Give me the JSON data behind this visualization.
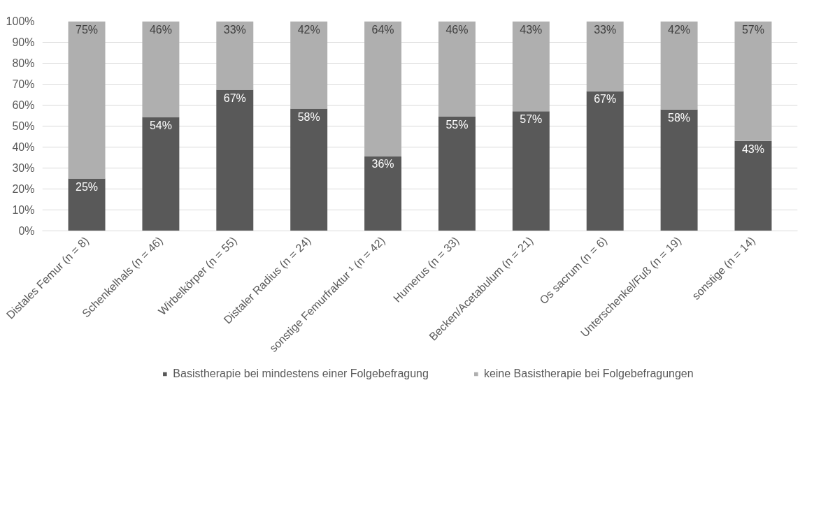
{
  "chart_data": {
    "type": "bar",
    "stacked": true,
    "categories": [
      "Distales Femur (n = 8)",
      "Schenkelhals (n = 46)",
      "Wirbelkörper (n = 55)",
      "Distaler Radius (n = 24)",
      "sonstige Femurfraktur ¹ (n = 42)",
      "Humerus (n = 33)",
      "Becken/Acetabulum (n = 21)",
      "Os sacrum (n = 6)",
      "Unterschenkel/Fuß (n = 19)",
      "sonstige (n = 14)"
    ],
    "series": [
      {
        "name": "Basistherapie bei mindestens einer Folgebefragung",
        "color": "#595959",
        "values": [
          25,
          54.3,
          67.3,
          58.3,
          35.7,
          54.5,
          57.1,
          66.7,
          57.9,
          42.9
        ],
        "value_labels": [
          "25%",
          "54%",
          "67%",
          "58%",
          "36%",
          "55%",
          "57%",
          "67%",
          "58%",
          "43%"
        ]
      },
      {
        "name": "keine Basistherapie bei Folgebefragungen",
        "color": "#afafaf",
        "values": [
          75,
          45.7,
          32.7,
          41.7,
          64.3,
          45.5,
          42.9,
          33.3,
          42.1,
          57.1
        ],
        "value_labels": [
          "75%",
          "46%",
          "33%",
          "42%",
          "64%",
          "46%",
          "43%",
          "33%",
          "42%",
          "57%"
        ]
      }
    ],
    "ylim": [
      0,
      100
    ],
    "yticks": [
      {
        "value": 0,
        "label": "0%"
      },
      {
        "value": 10,
        "label": "10%"
      },
      {
        "value": 20,
        "label": "20%"
      },
      {
        "value": 30,
        "label": "30%"
      },
      {
        "value": 40,
        "label": "40%"
      },
      {
        "value": 50,
        "label": "50%"
      },
      {
        "value": 60,
        "label": "60%"
      },
      {
        "value": 70,
        "label": "70%"
      },
      {
        "value": 80,
        "label": "80%"
      },
      {
        "value": 90,
        "label": "90%"
      },
      {
        "value": 100,
        "label": "100%"
      }
    ],
    "grid": "y",
    "legend": "bottom"
  }
}
